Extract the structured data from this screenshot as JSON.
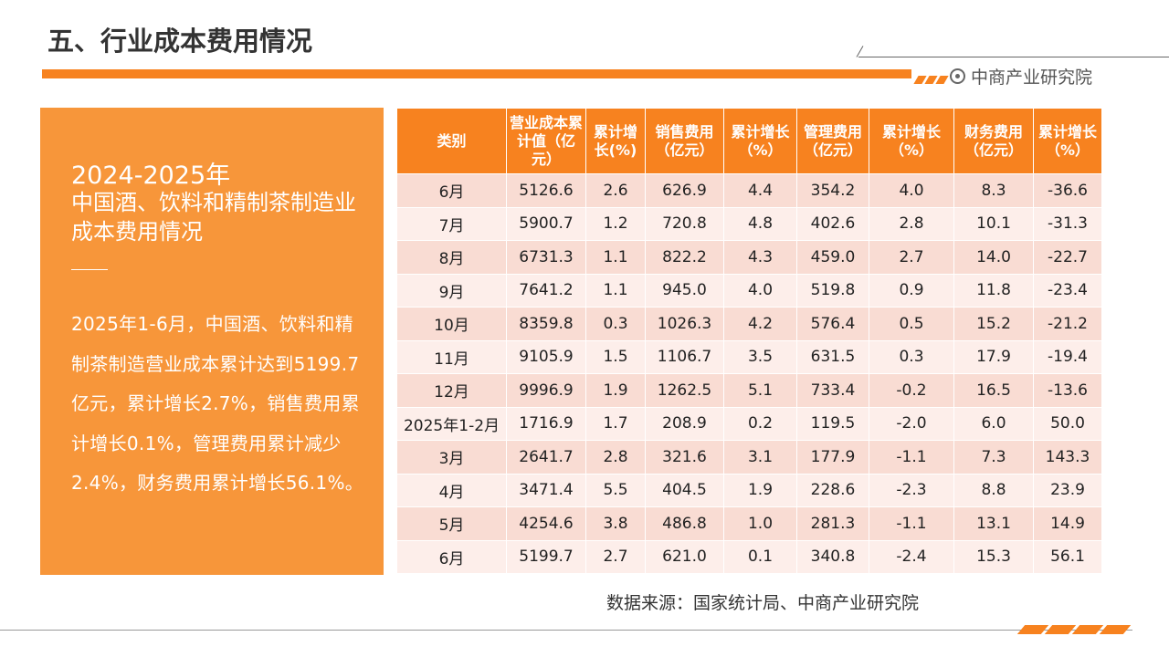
{
  "header": {
    "title": "五、行业成本费用情况",
    "brand": "中商产业研究院"
  },
  "panel": {
    "title_line1": "2024-2025年",
    "title_line2": "中国酒、饮料和精制茶制造业成本费用情况",
    "body": "2025年1-6月，中国酒、饮料和精制茶制造营业成本累计达到5199.7亿元，累计增长2.7%，销售费用累计增长0.1%，管理费用累计减少2.4%，财务费用累计增长56.1%。"
  },
  "table": {
    "headers": [
      "类别",
      "营业成本累计值（亿元）",
      "累计增长(%)",
      "销售费用（亿元）",
      "累计增长（%）",
      "管理费用（亿元）",
      "累计增长（%）",
      "财务费用（亿元）",
      "累计增长（%）"
    ],
    "rows": [
      [
        "6月",
        "5126.6",
        "2.6",
        "626.9",
        "4.4",
        "354.2",
        "4.0",
        "8.3",
        "-36.6"
      ],
      [
        "7月",
        "5900.7",
        "1.2",
        "720.8",
        "4.8",
        "402.6",
        "2.8",
        "10.1",
        "-31.3"
      ],
      [
        "8月",
        "6731.3",
        "1.1",
        "822.2",
        "4.3",
        "459.0",
        "2.7",
        "14.0",
        "-22.7"
      ],
      [
        "9月",
        "7641.2",
        "1.1",
        "945.0",
        "4.0",
        "519.8",
        "0.9",
        "11.8",
        "-23.4"
      ],
      [
        "10月",
        "8359.8",
        "0.3",
        "1026.3",
        "4.2",
        "576.4",
        "0.5",
        "15.2",
        "-21.2"
      ],
      [
        "11月",
        "9105.9",
        "1.5",
        "1106.7",
        "3.5",
        "631.5",
        "0.3",
        "17.9",
        "-19.4"
      ],
      [
        "12月",
        "9996.9",
        "1.9",
        "1262.5",
        "5.1",
        "733.4",
        "-0.2",
        "16.5",
        "-13.6"
      ],
      [
        "2025年1-2月",
        "1716.9",
        "1.7",
        "208.9",
        "0.2",
        "119.5",
        "-2.0",
        "6.0",
        "50.0"
      ],
      [
        "3月",
        "2641.7",
        "2.8",
        "321.6",
        "3.1",
        "177.9",
        "-1.1",
        "7.3",
        "143.3"
      ],
      [
        "4月",
        "3471.4",
        "5.5",
        "404.5",
        "1.9",
        "228.6",
        "-2.3",
        "8.8",
        "23.9"
      ],
      [
        "5月",
        "4254.6",
        "3.8",
        "486.8",
        "1.0",
        "281.3",
        "-1.1",
        "13.1",
        "14.9"
      ],
      [
        "6月",
        "5199.7",
        "2.7",
        "621.0",
        "0.1",
        "340.8",
        "-2.4",
        "15.3",
        "56.1"
      ]
    ]
  },
  "source": "数据来源：国家统计局、中商产业研究院",
  "colors": {
    "accent": "#f7821f",
    "panel": "#f7963a",
    "row_dark": "#f9dcd3",
    "row_light": "#fdeeea"
  }
}
